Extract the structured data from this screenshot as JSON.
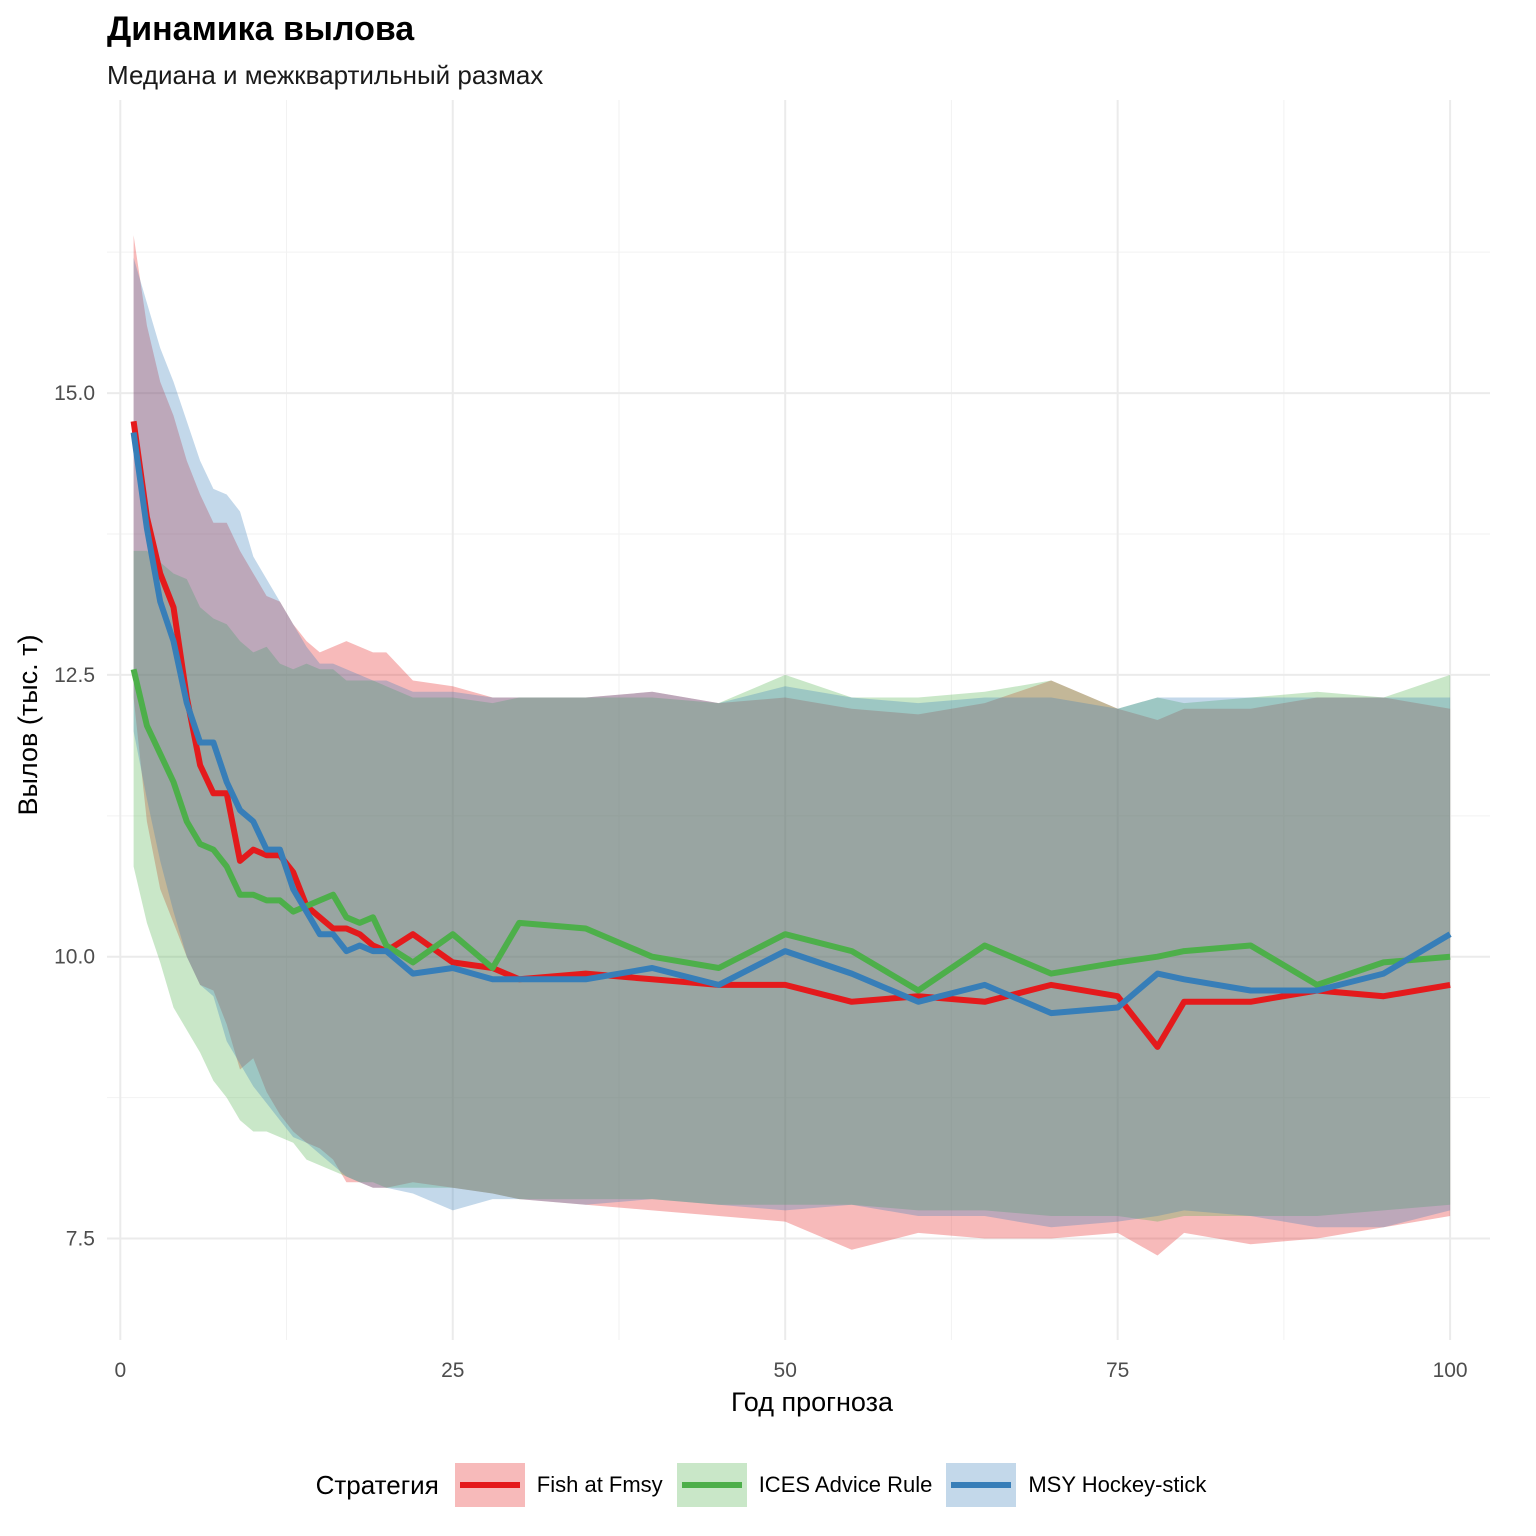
{
  "title": "Динамика вылова",
  "subtitle": "Медиана и межквартильный размах",
  "chart_data": {
    "type": "line",
    "title": "Динамика вылова",
    "subtitle": "Медиана и межквартильный размах",
    "xlabel": "Год прогноза",
    "ylabel": "Вылов (тыс. т)",
    "xlim": [
      -1,
      103
    ],
    "ylim": [
      6.6,
      17.6
    ],
    "x_ticks": [
      0,
      25,
      50,
      75,
      100
    ],
    "y_ticks": [
      7.5,
      10.0,
      12.5,
      15.0
    ],
    "x_tick_labels": [
      "0",
      "25",
      "50",
      "75",
      "100"
    ],
    "y_tick_labels": [
      "7.5",
      "10.0",
      "12.5",
      "15.0"
    ],
    "grid": true,
    "legend_position": "bottom",
    "legend_title": "Стратегия",
    "x": [
      1,
      2,
      3,
      4,
      5,
      6,
      7,
      8,
      9,
      10,
      11,
      12,
      13,
      14,
      15,
      16,
      17,
      18,
      19,
      20,
      22,
      25,
      28,
      30,
      35,
      40,
      45,
      50,
      55,
      60,
      65,
      70,
      75,
      78,
      80,
      85,
      90,
      95,
      100
    ],
    "series": [
      {
        "name": "Fish at Fmsy",
        "color": "#E41A1C",
        "median": [
          14.75,
          13.9,
          13.4,
          13.1,
          12.3,
          11.7,
          11.45,
          11.45,
          10.85,
          10.95,
          10.9,
          10.9,
          10.75,
          10.45,
          10.35,
          10.25,
          10.25,
          10.2,
          10.1,
          10.05,
          10.2,
          9.95,
          9.9,
          9.8,
          9.85,
          9.8,
          9.75,
          9.75,
          9.6,
          9.65,
          9.6,
          9.75,
          9.65,
          9.2,
          9.6,
          9.6,
          9.7,
          9.65,
          9.75
        ],
        "q1": [
          12.3,
          11.2,
          10.6,
          10.3,
          10.0,
          9.75,
          9.7,
          9.4,
          9.0,
          9.1,
          8.8,
          8.6,
          8.45,
          8.35,
          8.3,
          8.2,
          8.0,
          8.0,
          7.95,
          7.95,
          8.0,
          7.95,
          7.9,
          7.85,
          7.8,
          7.75,
          7.7,
          7.65,
          7.4,
          7.55,
          7.5,
          7.5,
          7.55,
          7.35,
          7.55,
          7.45,
          7.5,
          7.6,
          7.7
        ],
        "q3": [
          16.4,
          15.6,
          15.1,
          14.8,
          14.4,
          14.1,
          13.85,
          13.85,
          13.6,
          13.4,
          13.2,
          13.15,
          12.95,
          12.8,
          12.7,
          12.75,
          12.8,
          12.75,
          12.7,
          12.7,
          12.45,
          12.4,
          12.3,
          12.3,
          12.3,
          12.35,
          12.25,
          12.3,
          12.2,
          12.15,
          12.25,
          12.45,
          12.2,
          12.1,
          12.2,
          12.2,
          12.3,
          12.3,
          12.2
        ]
      },
      {
        "name": "ICES Advice Rule",
        "color": "#4DAF4A",
        "median": [
          12.55,
          12.05,
          11.8,
          11.55,
          11.2,
          11.0,
          10.95,
          10.8,
          10.55,
          10.55,
          10.5,
          10.5,
          10.4,
          10.45,
          10.5,
          10.55,
          10.35,
          10.3,
          10.35,
          10.1,
          9.95,
          10.2,
          9.9,
          10.3,
          10.25,
          10.0,
          9.9,
          10.2,
          10.05,
          9.7,
          10.1,
          9.85,
          9.95,
          10.0,
          10.05,
          10.1,
          9.75,
          9.95,
          10.0
        ],
        "q1": [
          10.8,
          10.3,
          9.95,
          9.55,
          9.35,
          9.15,
          8.9,
          8.75,
          8.55,
          8.45,
          8.45,
          8.4,
          8.35,
          8.2,
          8.15,
          8.1,
          8.05,
          8.0,
          8.0,
          7.95,
          7.95,
          7.95,
          7.9,
          7.85,
          7.85,
          7.85,
          7.8,
          7.8,
          7.8,
          7.75,
          7.75,
          7.7,
          7.7,
          7.65,
          7.7,
          7.7,
          7.7,
          7.75,
          7.8
        ],
        "q3": [
          13.6,
          13.6,
          13.5,
          13.4,
          13.35,
          13.1,
          13.0,
          12.95,
          12.8,
          12.7,
          12.75,
          12.6,
          12.55,
          12.6,
          12.55,
          12.55,
          12.45,
          12.45,
          12.45,
          12.4,
          12.3,
          12.3,
          12.25,
          12.3,
          12.3,
          12.3,
          12.25,
          12.5,
          12.3,
          12.3,
          12.35,
          12.45,
          12.2,
          12.3,
          12.25,
          12.3,
          12.35,
          12.3,
          12.5
        ]
      },
      {
        "name": "MSY Hockey-stick",
        "color": "#377EB8",
        "median": [
          14.65,
          13.8,
          13.15,
          12.8,
          12.25,
          11.9,
          11.9,
          11.55,
          11.3,
          11.2,
          10.95,
          10.95,
          10.6,
          10.4,
          10.2,
          10.2,
          10.05,
          10.1,
          10.05,
          10.05,
          9.85,
          9.9,
          9.8,
          9.8,
          9.8,
          9.9,
          9.75,
          10.05,
          9.85,
          9.6,
          9.75,
          9.5,
          9.55,
          9.85,
          9.8,
          9.7,
          9.7,
          9.85,
          10.2
        ],
        "q1": [
          12.0,
          11.4,
          10.85,
          10.4,
          10.0,
          9.75,
          9.65,
          9.25,
          9.05,
          8.85,
          8.7,
          8.55,
          8.4,
          8.35,
          8.25,
          8.15,
          8.05,
          8.0,
          7.95,
          7.95,
          7.9,
          7.75,
          7.85,
          7.85,
          7.8,
          7.85,
          7.8,
          7.75,
          7.8,
          7.7,
          7.7,
          7.6,
          7.65,
          7.7,
          7.75,
          7.7,
          7.6,
          7.6,
          7.75
        ],
        "q3": [
          16.2,
          15.8,
          15.4,
          15.1,
          14.75,
          14.4,
          14.15,
          14.1,
          13.95,
          13.55,
          13.35,
          13.15,
          12.95,
          12.75,
          12.6,
          12.6,
          12.55,
          12.5,
          12.45,
          12.45,
          12.35,
          12.35,
          12.3,
          12.3,
          12.3,
          12.35,
          12.25,
          12.4,
          12.3,
          12.25,
          12.3,
          12.3,
          12.2,
          12.3,
          12.3,
          12.3,
          12.3,
          12.3,
          12.3
        ]
      }
    ]
  }
}
